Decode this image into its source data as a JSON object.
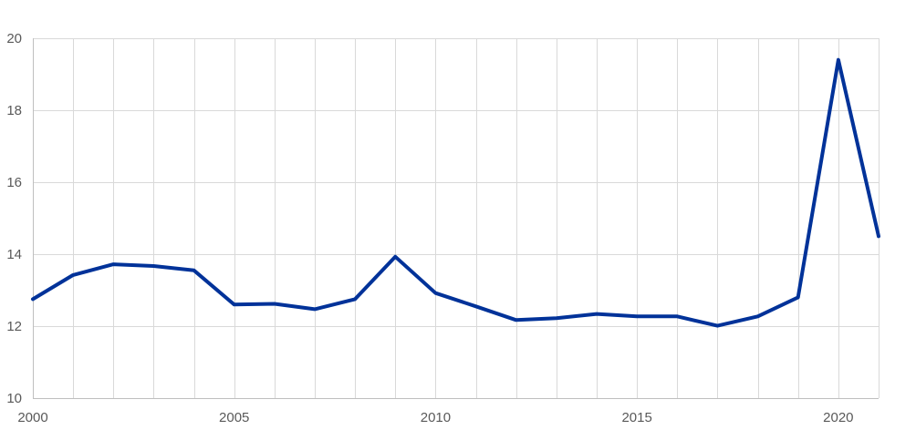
{
  "chart_data": {
    "type": "line",
    "title": "",
    "xlabel": "",
    "ylabel": "",
    "xlim": [
      2000,
      2021
    ],
    "ylim": [
      10,
      20
    ],
    "x_ticks": [
      "2000",
      "2005",
      "2010",
      "2015",
      "2020"
    ],
    "y_ticks": [
      "10",
      "12",
      "14",
      "16",
      "18",
      "20"
    ],
    "grid": true,
    "legend": "none",
    "series": [
      {
        "color": "#003299",
        "x": [
          2000,
          2001,
          2002,
          2003,
          2004,
          2005,
          2006,
          2007,
          2008,
          2009,
          2010,
          2011,
          2012,
          2013,
          2014,
          2015,
          2016,
          2017,
          2018,
          2019,
          2020,
          2021
        ],
        "values": [
          12.75,
          13.42,
          13.72,
          13.67,
          13.55,
          12.6,
          12.62,
          12.47,
          12.75,
          13.93,
          12.92,
          12.55,
          12.17,
          12.22,
          12.34,
          12.27,
          12.27,
          12.01,
          12.27,
          12.8,
          19.4,
          14.5
        ]
      }
    ]
  }
}
